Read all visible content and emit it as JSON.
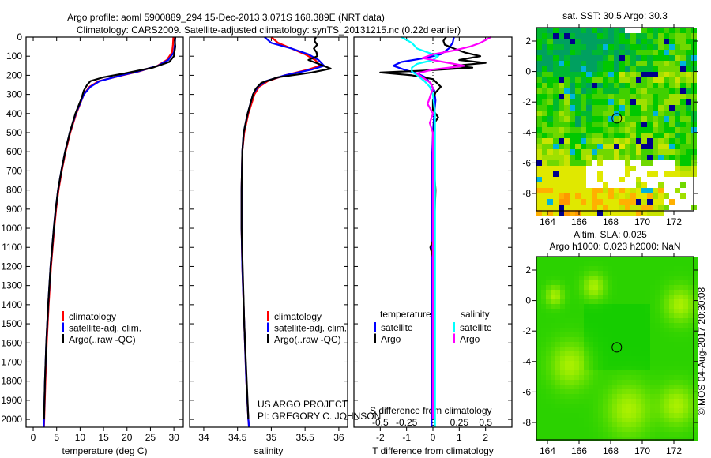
{
  "title": {
    "line1": "Argo profile: aoml 5900889_294 15-Dec-2013 3.071S 168.389E (NRT data)",
    "line2": "Climatology: CARS2009. Satellite-adjusted climatology: synTS_20131215.nc (0.22d earlier)"
  },
  "annotations": {
    "project": "US ARGO PROJECT",
    "pi": "PI: GREGORY C. JOHNSON",
    "stamp": "©IMOS 04-Aug-2017 20:30:08"
  },
  "chart_data": [
    {
      "type": "line",
      "id": "temperature",
      "xlabel": "temperature (deg C)",
      "ylabel": "depth",
      "xlim": [
        -1.52,
        32.0
      ],
      "ylim": [
        2041,
        0
      ],
      "xticks": [
        0,
        5,
        10,
        15,
        20,
        25,
        30
      ],
      "xtick_labels": [
        "0",
        "5",
        "10",
        "15",
        "20",
        "25",
        "30"
      ],
      "yticks": [
        0,
        100,
        200,
        300,
        400,
        500,
        600,
        700,
        800,
        900,
        1000,
        1100,
        1200,
        1300,
        1400,
        1500,
        1600,
        1700,
        1800,
        1900,
        2000
      ],
      "ytick_labels": [
        "0",
        "100",
        "200",
        "300",
        "400",
        "500",
        "600",
        "700",
        "800",
        "900",
        "1000",
        "1100",
        "1200",
        "1300",
        "1400",
        "1500",
        "1600",
        "1700",
        "1800",
        "1900",
        "2000"
      ],
      "legend": [
        {
          "label": "climatology",
          "color": "#ff0000"
        },
        {
          "label": "satellite-adj. clim.",
          "color": "#0000ff"
        },
        {
          "label": "Argo(..raw -QC)",
          "color": "#000000"
        }
      ],
      "series": [
        {
          "name": "climatology",
          "color": "#ff0000",
          "depth": [
            0,
            40,
            80,
            120,
            150,
            180,
            200,
            230,
            260,
            300,
            400,
            500,
            600,
            700,
            800,
            900,
            1000,
            1200,
            1400,
            1600,
            1800,
            2000,
            2041
          ],
          "values": [
            29.9,
            29.8,
            29.6,
            28.5,
            26.5,
            22.5,
            19,
            14,
            12,
            10.8,
            9.2,
            7.9,
            6.9,
            6.1,
            5.4,
            4.9,
            4.5,
            3.8,
            3.3,
            2.9,
            2.6,
            2.35,
            2.3
          ]
        },
        {
          "name": "satellite-adj. clim.",
          "color": "#0000ff",
          "depth": [
            0,
            40,
            80,
            120,
            150,
            180,
            200,
            230,
            260,
            300,
            400,
            500,
            600,
            700,
            800,
            900,
            1000,
            1200,
            1400,
            1600,
            1800,
            2000,
            2041
          ],
          "values": [
            30.3,
            30.2,
            30.0,
            28.8,
            26.6,
            22.3,
            18.8,
            14.2,
            12.2,
            10.8,
            9.1,
            7.8,
            6.8,
            6.0,
            5.3,
            4.8,
            4.4,
            3.7,
            3.2,
            2.8,
            2.5,
            2.3,
            2.25
          ]
        },
        {
          "name": "Argo",
          "color": "#000000",
          "depth": [
            0,
            20,
            50,
            80,
            100,
            130,
            160,
            190,
            210,
            230,
            250,
            280,
            320,
            400,
            500,
            600,
            700,
            800,
            900,
            1000,
            1200,
            1400,
            1600,
            1800,
            2000
          ],
          "values": [
            30.3,
            30.2,
            30.3,
            30.1,
            30.0,
            29.0,
            25.5,
            19.5,
            15,
            12.2,
            11.5,
            10.8,
            10.3,
            9.0,
            7.8,
            6.8,
            6.0,
            5.3,
            4.8,
            4.4,
            3.7,
            3.2,
            2.8,
            2.5,
            2.3
          ]
        }
      ]
    },
    {
      "type": "line",
      "id": "salinity",
      "xlabel": "salinity",
      "ylabel": "depth",
      "xlim": [
        33.79,
        36.13
      ],
      "ylim": [
        2041,
        0
      ],
      "xticks": [
        34,
        34.5,
        35,
        35.5,
        36
      ],
      "xtick_labels": [
        "34",
        "34.5",
        "35",
        "35.5",
        "36"
      ],
      "legend": [
        {
          "label": "climatology",
          "color": "#ff0000"
        },
        {
          "label": "satellite-adj. clim.",
          "color": "#0000ff"
        },
        {
          "label": "Argo(..raw -QC)",
          "color": "#000000"
        }
      ],
      "series": [
        {
          "name": "climatology",
          "color": "#ff0000",
          "depth": [
            0,
            30,
            60,
            90,
            120,
            150,
            170,
            200,
            230,
            260,
            300,
            400,
            500,
            600,
            800,
            1000,
            1200,
            1500,
            1800,
            2000,
            2041
          ],
          "values": [
            35.0,
            35.1,
            35.3,
            35.5,
            35.65,
            35.72,
            35.55,
            35.2,
            34.95,
            34.82,
            34.75,
            34.66,
            34.6,
            34.57,
            34.56,
            34.56,
            34.57,
            34.6,
            34.63,
            34.66,
            34.67
          ]
        },
        {
          "name": "satellite-adj. clim.",
          "color": "#0000ff",
          "depth": [
            0,
            30,
            60,
            90,
            120,
            150,
            170,
            200,
            230,
            260,
            300,
            400,
            500,
            600,
            800,
            1000,
            1200,
            1500,
            1800,
            2000,
            2041
          ],
          "values": [
            34.9,
            35.0,
            35.3,
            35.55,
            35.7,
            35.78,
            35.6,
            35.2,
            34.92,
            34.8,
            34.73,
            34.65,
            34.59,
            34.57,
            34.56,
            34.56,
            34.57,
            34.6,
            34.63,
            34.66,
            34.67
          ]
        },
        {
          "name": "Argo",
          "color": "#000000",
          "depth": [
            0,
            20,
            40,
            60,
            80,
            100,
            120,
            140,
            165,
            185,
            210,
            240,
            270,
            300,
            400,
            500,
            600,
            800,
            1000,
            1500,
            2000
          ],
          "values": [
            35.66,
            35.64,
            35.68,
            35.63,
            35.67,
            35.68,
            35.55,
            35.7,
            35.88,
            35.6,
            35.1,
            34.85,
            34.77,
            34.73,
            34.65,
            34.59,
            34.57,
            34.56,
            34.56,
            34.6,
            34.66
          ]
        }
      ]
    },
    {
      "type": "line",
      "id": "difference",
      "xlabel": "T difference from climatology",
      "xlabel_top": "S difference from climatology",
      "xlim": [
        -3.0,
        3.0
      ],
      "ylim": [
        2041,
        0
      ],
      "xticks": [
        -2,
        -1,
        0,
        1,
        2
      ],
      "xtick_labels": [
        "-2",
        "-1",
        "0",
        "1",
        "2"
      ],
      "s_xticks": [
        -0.5,
        -0.25,
        0,
        0.25,
        0.5
      ],
      "s_xtick_labels": [
        "-0.5",
        "-0.25",
        "0",
        "0.25",
        "0.5"
      ],
      "s_scale_per_T": 0.25,
      "legend_headers": {
        "temperature": "temperature",
        "salinity": "salinity"
      },
      "legend": [
        {
          "group": "temperature",
          "label": "satellite",
          "color": "#0000ff"
        },
        {
          "group": "temperature",
          "label": "Argo",
          "color": "#000000"
        },
        {
          "group": "salinity",
          "label": "satellite",
          "color": "#00ffff"
        },
        {
          "group": "salinity",
          "label": "Argo",
          "color": "#ff00ff"
        }
      ],
      "series": [
        {
          "name": "T satellite",
          "variable": "T",
          "color": "#0000ff",
          "depth": [
            0,
            30,
            60,
            90,
            110,
            130,
            150,
            170,
            190,
            210,
            240,
            280,
            330,
            400,
            500,
            700,
            1000,
            1500,
            2041
          ],
          "values": [
            0.8,
            0.75,
            0.6,
            0.3,
            -0.3,
            -1.2,
            -1.5,
            -1.1,
            -0.6,
            -0.3,
            -0.1,
            0.05,
            0.1,
            0.05,
            0.0,
            -0.05,
            -0.05,
            -0.05,
            -0.05
          ]
        },
        {
          "name": "T Argo",
          "variable": "T",
          "color": "#000000",
          "depth": [
            0,
            20,
            40,
            60,
            80,
            100,
            120,
            135,
            150,
            160,
            175,
            185,
            200,
            220,
            260,
            290,
            330,
            380,
            420,
            450,
            500,
            600,
            700,
            800,
            1000,
            1050,
            1100,
            1150,
            1200,
            1400,
            2000
          ],
          "values": [
            0.5,
            0.4,
            0.45,
            0.8,
            1.2,
            1.8,
            1.0,
            2.0,
            0.8,
            1.5,
            -0.3,
            -2.0,
            -0.8,
            0.0,
            0.3,
            0.1,
            0.0,
            0.0,
            0.2,
            0.05,
            0.05,
            0.0,
            0.05,
            0.1,
            0.05,
            0.05,
            -0.1,
            0.0,
            0.05,
            0.0,
            0.0
          ]
        },
        {
          "name": "S satellite",
          "variable": "S",
          "color": "#00ffff",
          "depth": [
            0,
            30,
            60,
            80,
            100,
            120,
            140,
            160,
            180,
            200,
            230,
            260,
            300,
            400,
            500,
            700,
            1000,
            1500,
            2041
          ],
          "values": [
            -0.3,
            -0.2,
            -0.15,
            -0.05,
            0.05,
            0.0,
            -0.15,
            -0.2,
            -0.2,
            -0.15,
            -0.08,
            -0.03,
            0.0,
            0.02,
            0.02,
            0.02,
            0.02,
            0.02,
            0.02
          ]
        },
        {
          "name": "S Argo",
          "variable": "S",
          "color": "#ff00ff",
          "depth": [
            0,
            15,
            30,
            50,
            70,
            90,
            110,
            130,
            150,
            170,
            190,
            210,
            240,
            270,
            300,
            350,
            400,
            450,
            500,
            700,
            1000,
            1500,
            2000
          ],
          "values": [
            0.55,
            0.5,
            0.45,
            0.35,
            0.2,
            0.0,
            -0.1,
            0.1,
            0.3,
            0.0,
            -0.15,
            -0.1,
            -0.02,
            0.0,
            -0.02,
            -0.05,
            0.0,
            -0.03,
            0.0,
            0.0,
            0.0,
            0.0,
            0.0
          ]
        }
      ]
    }
  ],
  "maps": [
    {
      "id": "sst",
      "title": "sat. SST: 30.5 Argo: 30.3",
      "lon_range": [
        163.3,
        173.25
      ],
      "lat_range": [
        -9.14,
        2.88
      ],
      "xticks": [
        164,
        166,
        168,
        170,
        172
      ],
      "xtick_labels": [
        "164",
        "166",
        "168",
        "170",
        "172"
      ],
      "yticks": [
        2,
        0,
        -2,
        -4,
        -6,
        -8
      ],
      "ytick_labels": [
        "2",
        "0",
        "-2",
        "-4",
        "-6",
        "-8"
      ],
      "marker": {
        "lon": 168.389,
        "lat": -3.071
      }
    },
    {
      "id": "sla",
      "title": "Altim. SLA: 0.025",
      "subtitle": "Argo h1000: 0.023 h2000: NaN",
      "lon_range": [
        163.3,
        173.25
      ],
      "lat_range": [
        -9.14,
        2.88
      ],
      "xticks": [
        164,
        166,
        168,
        170,
        172
      ],
      "xtick_labels": [
        "164",
        "166",
        "168",
        "170",
        "172"
      ],
      "yticks": [
        2,
        0,
        -2,
        -4,
        -6,
        -8
      ],
      "ytick_labels": [
        "2",
        "0",
        "-2",
        "-4",
        "-6",
        "-8"
      ],
      "marker": {
        "lon": 168.389,
        "lat": -3.071
      }
    }
  ]
}
